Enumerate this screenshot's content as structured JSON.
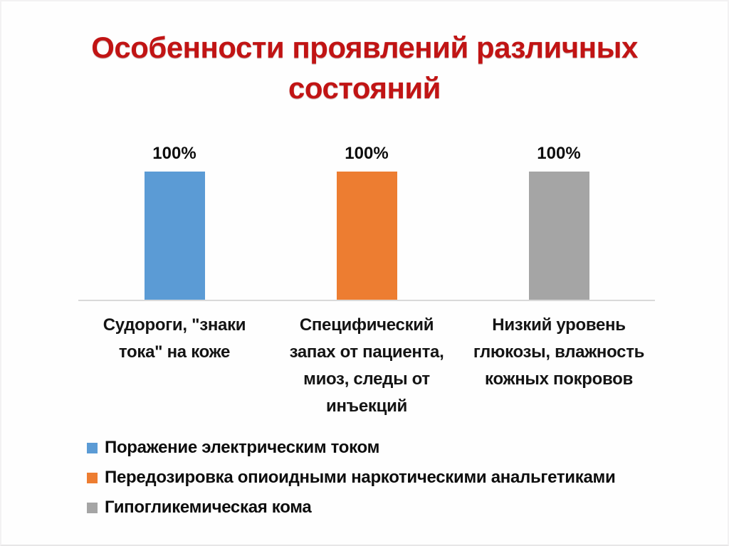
{
  "slide": {
    "title": "Особенности проявлений различных\nсостояний",
    "title_color": "#c11414",
    "background": "#fefefe"
  },
  "chart": {
    "axis_color": "#d9d9d9",
    "bars": [
      {
        "value_label": "100%",
        "color": "#5b9bd5",
        "category": "Судороги, \"знаки\nтока\" на коже"
      },
      {
        "value_label": "100%",
        "color": "#ed7d31",
        "category": "Специфический\nзапах от пациента,\nмиоз, следы от\nинъекций"
      },
      {
        "value_label": "100%",
        "color": "#a5a5a5",
        "category": "Низкий уровень\nглюкозы, влажность\nкожных покровов"
      }
    ],
    "legend": [
      {
        "label": "Поражение электрическим током",
        "color": "#5b9bd5"
      },
      {
        "label": "Передозировка опиоидными наркотическими анальгетиками",
        "color": "#ed7d31"
      },
      {
        "label": "Гипогликемическая кома",
        "color": "#a5a5a5"
      }
    ]
  },
  "chart_data": {
    "type": "bar",
    "title": "Особенности проявлений различных состояний",
    "categories": [
      "Судороги, \"знаки тока\" на коже",
      "Специфический запах от пациента, миоз, следы от инъекций",
      "Низкий уровень глюкозы, влажность кожных покровов"
    ],
    "series": [
      {
        "name": "Поражение электрическим током",
        "values": [
          100,
          0,
          0
        ],
        "color": "#5b9bd5"
      },
      {
        "name": "Передозировка опиоидными наркотическими анальгетиками",
        "values": [
          0,
          100,
          0
        ],
        "color": "#ed7d31"
      },
      {
        "name": "Гипогликемическая кома",
        "values": [
          0,
          0,
          100
        ],
        "color": "#a5a5a5"
      }
    ],
    "value_labels": [
      "100%",
      "100%",
      "100%"
    ],
    "xlabel": "",
    "ylabel": "",
    "ylim": [
      0,
      100
    ],
    "grid": false,
    "legend_position": "bottom-left"
  }
}
